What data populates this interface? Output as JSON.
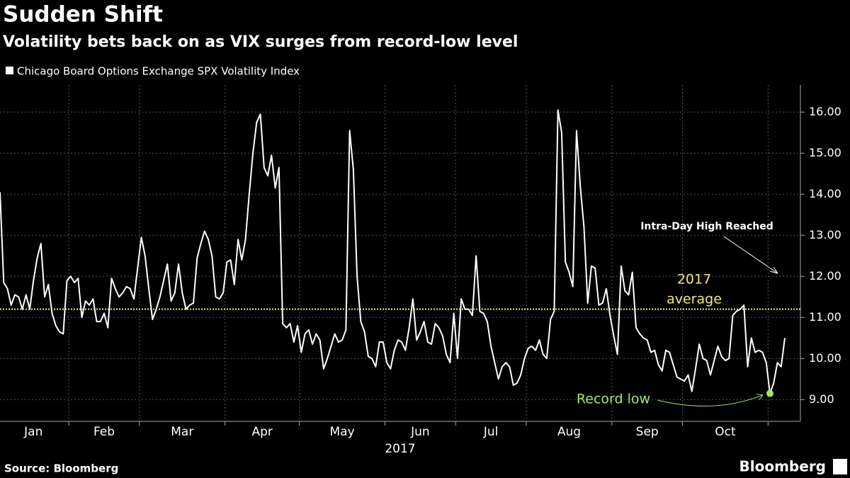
{
  "chart_data": {
    "type": "line",
    "title": "Sudden Shift",
    "subtitle": "Volatility bets back on as VIX surges from record-low level",
    "x_label": "2017",
    "source": "Source: Bloomberg",
    "brand": "Bloomberg",
    "categories": [
      "Jan",
      "Jan",
      "Jan",
      "Jan",
      "Jan",
      "Jan",
      "Jan",
      "Jan",
      "Jan",
      "Jan",
      "Jan",
      "Jan",
      "Jan",
      "Jan",
      "Jan",
      "Jan",
      "Jan",
      "Jan",
      "Jan",
      "Feb",
      "Feb",
      "Feb",
      "Feb",
      "Feb",
      "Feb",
      "Feb",
      "Feb",
      "Feb",
      "Feb",
      "Feb",
      "Feb",
      "Feb",
      "Feb",
      "Feb",
      "Feb",
      "Feb",
      "Feb",
      "Feb",
      "Mar",
      "Mar",
      "Mar",
      "Mar",
      "Mar",
      "Mar",
      "Mar",
      "Mar",
      "Mar",
      "Mar",
      "Mar",
      "Mar",
      "Mar",
      "Mar",
      "Mar",
      "Mar",
      "Mar",
      "Mar",
      "Mar",
      "Mar",
      "Mar",
      "Mar",
      "Mar",
      "Apr",
      "Apr",
      "Apr",
      "Apr",
      "Apr",
      "Apr",
      "Apr",
      "Apr",
      "Apr",
      "Apr",
      "Apr",
      "Apr",
      "Apr",
      "Apr",
      "Apr",
      "Apr",
      "Apr",
      "Apr",
      "Apr",
      "Apr",
      "May",
      "May",
      "May",
      "May",
      "May",
      "May",
      "May",
      "May",
      "May",
      "May",
      "May",
      "May",
      "May",
      "May",
      "May",
      "May",
      "May",
      "May",
      "May",
      "May",
      "May",
      "May",
      "May",
      "Jun",
      "Jun",
      "Jun",
      "Jun",
      "Jun",
      "Jun",
      "Jun",
      "Jun",
      "Jun",
      "Jun",
      "Jun",
      "Jun",
      "Jun",
      "Jun",
      "Jun",
      "Jun",
      "Jun",
      "Jun",
      "Jun",
      "Jul",
      "Jul",
      "Jul",
      "Jul",
      "Jul",
      "Jul",
      "Jul",
      "Jul",
      "Jul",
      "Jul",
      "Jul",
      "Jul",
      "Jul",
      "Jul",
      "Jul",
      "Jul",
      "Jul",
      "Jul",
      "Jul",
      "Aug",
      "Aug",
      "Aug",
      "Aug",
      "Aug",
      "Aug",
      "Aug",
      "Aug",
      "Aug",
      "Aug",
      "Aug",
      "Aug",
      "Aug",
      "Aug",
      "Aug",
      "Aug",
      "Aug",
      "Aug",
      "Aug",
      "Aug",
      "Aug",
      "Aug",
      "Aug",
      "Sep",
      "Sep",
      "Sep",
      "Sep",
      "Sep",
      "Sep",
      "Sep",
      "Sep",
      "Sep",
      "Sep",
      "Sep",
      "Sep",
      "Sep",
      "Sep",
      "Sep",
      "Sep",
      "Sep",
      "Sep",
      "Sep",
      "Oct",
      "Oct",
      "Oct",
      "Oct",
      "Oct",
      "Oct",
      "Oct",
      "Oct",
      "Oct",
      "Oct",
      "Oct",
      "Oct",
      "Oct",
      "Oct",
      "Oct",
      "Oct",
      "Oct",
      "Oct",
      "Oct",
      "Oct",
      "Oct",
      "Oct",
      "Oct",
      null,
      null,
      null,
      null,
      null
    ],
    "series": [
      {
        "name": "Chicago Board Options Exchange SPX Volatility Index",
        "color": "#ffffff",
        "values": [
          14.05,
          11.85,
          11.7,
          11.3,
          11.55,
          11.5,
          11.2,
          11.55,
          11.2,
          11.9,
          12.45,
          12.8,
          11.5,
          11.8,
          11.1,
          10.8,
          10.65,
          10.6,
          11.9,
          12.0,
          11.85,
          11.95,
          11.0,
          11.4,
          11.3,
          11.45,
          10.9,
          10.9,
          11.1,
          10.75,
          11.95,
          11.7,
          11.5,
          11.6,
          11.75,
          11.7,
          11.45,
          12.2,
          12.95,
          12.5,
          11.7,
          10.95,
          11.2,
          11.5,
          11.9,
          12.3,
          11.4,
          11.6,
          12.3,
          11.6,
          11.2,
          11.3,
          11.35,
          12.45,
          12.8,
          13.1,
          12.9,
          12.5,
          11.5,
          11.45,
          11.6,
          12.35,
          12.4,
          11.8,
          12.9,
          12.4,
          12.9,
          14.0,
          15.0,
          15.75,
          15.95,
          14.65,
          14.45,
          14.95,
          14.15,
          14.65,
          10.85,
          10.75,
          10.85,
          10.4,
          10.8,
          10.15,
          10.6,
          10.7,
          10.35,
          10.6,
          10.45,
          9.75,
          10.0,
          10.3,
          10.6,
          10.4,
          10.45,
          10.7,
          15.55,
          14.6,
          12.0,
          10.9,
          10.65,
          10.05,
          10.0,
          9.8,
          10.4,
          10.4,
          9.9,
          9.75,
          10.2,
          10.45,
          10.4,
          10.2,
          10.75,
          11.45,
          10.45,
          10.65,
          10.9,
          10.4,
          10.35,
          10.85,
          10.75,
          10.55,
          10.1,
          9.9,
          11.1,
          10.0,
          11.45,
          11.2,
          11.2,
          11.05,
          12.5,
          11.15,
          11.1,
          10.9,
          10.3,
          9.9,
          9.5,
          9.8,
          9.9,
          9.8,
          9.35,
          9.4,
          9.6,
          10.0,
          10.25,
          10.3,
          10.2,
          10.45,
          10.1,
          10.0,
          10.95,
          11.15,
          16.05,
          15.5,
          12.35,
          12.1,
          11.75,
          15.55,
          14.2,
          13.2,
          11.35,
          12.25,
          12.2,
          11.3,
          11.35,
          11.7,
          11.05,
          10.55,
          10.1,
          12.25,
          11.65,
          11.55,
          12.1,
          10.75,
          10.6,
          10.5,
          10.45,
          10.15,
          10.2,
          9.85,
          9.7,
          10.2,
          10.15,
          9.85,
          9.55,
          9.5,
          9.45,
          9.6,
          9.2,
          9.75,
          10.35,
          10.0,
          9.95,
          9.6,
          9.95,
          10.3,
          10.05,
          9.95,
          10.0,
          11.05,
          11.15,
          11.2,
          11.3,
          9.8,
          10.5,
          10.15,
          10.2,
          10.15,
          9.9,
          9.15,
          9.4,
          9.9,
          9.8,
          10.5
        ]
      }
    ],
    "ylim": [
      8.47,
      16.66
    ],
    "yticks": [
      {
        "value": 9,
        "label": "9.00"
      },
      {
        "value": 10,
        "label": "10.00"
      },
      {
        "value": 11,
        "label": "11.00"
      },
      {
        "value": 12,
        "label": "12.00"
      },
      {
        "value": 13,
        "label": "13.00"
      },
      {
        "value": 14,
        "label": "14.00"
      },
      {
        "value": 15,
        "label": "15.00"
      },
      {
        "value": 16,
        "label": "16.00"
      }
    ],
    "grid": true,
    "average": {
      "label": [
        "2017",
        "average"
      ],
      "value": 11.2,
      "color": "#f2ea7a"
    },
    "annotations": {
      "high": "Intra-Day High Reached",
      "low": "Record low",
      "low_color": "#a6e36b"
    }
  }
}
